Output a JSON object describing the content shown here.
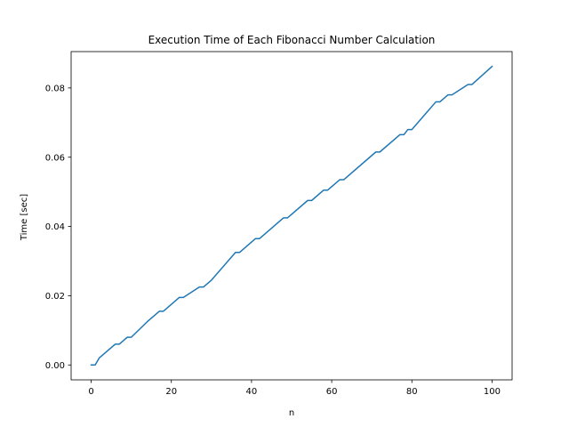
{
  "chart_data": {
    "type": "line",
    "title": "Execution Time of Each Fibonacci Number Calculation",
    "xlabel": "n",
    "ylabel": "Time [sec]",
    "xlim": [
      -5,
      105
    ],
    "ylim": [
      -0.0043,
      0.0905
    ],
    "xticks": [
      0,
      20,
      40,
      60,
      80,
      100
    ],
    "xtick_labels": [
      "0",
      "20",
      "40",
      "60",
      "80",
      "100"
    ],
    "yticks": [
      0.0,
      0.02,
      0.04,
      0.06,
      0.08
    ],
    "ytick_labels": [
      "0.00",
      "0.02",
      "0.04",
      "0.06",
      "0.08"
    ],
    "grid": false,
    "series": [
      {
        "color": "#1f77b4",
        "x": [
          0,
          1,
          2,
          6,
          7,
          9,
          10,
          14,
          17,
          18,
          22,
          23,
          27,
          28,
          29,
          30,
          36,
          37,
          41,
          42,
          48,
          49,
          54,
          55,
          58,
          59,
          62,
          63,
          71,
          72,
          77,
          78,
          79,
          80,
          86,
          87,
          89,
          90,
          94,
          95,
          100
        ],
        "values": [
          0.0,
          0.0,
          0.002,
          0.006,
          0.006,
          0.008,
          0.008,
          0.0125,
          0.0155,
          0.0155,
          0.0195,
          0.0195,
          0.0225,
          0.0225,
          0.0235,
          0.0245,
          0.0325,
          0.0325,
          0.0365,
          0.0365,
          0.0425,
          0.0425,
          0.0475,
          0.0475,
          0.0505,
          0.0505,
          0.0535,
          0.0535,
          0.0615,
          0.0615,
          0.0665,
          0.0665,
          0.068,
          0.068,
          0.076,
          0.076,
          0.078,
          0.078,
          0.081,
          0.081,
          0.0862
        ]
      }
    ]
  }
}
